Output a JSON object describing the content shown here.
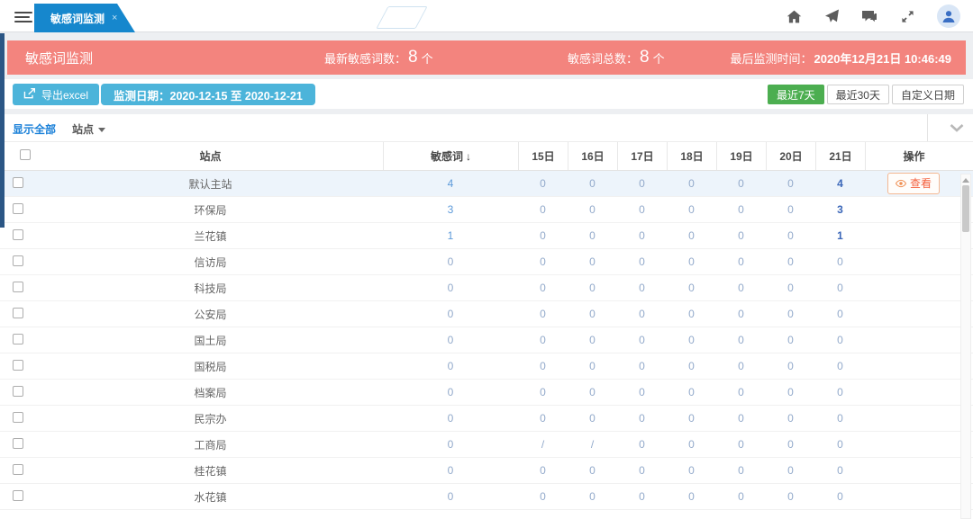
{
  "topbar": {
    "tab": {
      "label": "敏感词监测",
      "close_icon": "×"
    }
  },
  "header": {
    "title": "敏感词监测",
    "latest": {
      "label": "最新敏感词数：",
      "value": "8",
      "unit": "个"
    },
    "total": {
      "label": "敏感词总数：",
      "value": "8",
      "unit": "个"
    },
    "last_check": {
      "label": "最后监测时间：",
      "value": "2020年12月21日 10:46:49"
    }
  },
  "toolbar": {
    "export_label": "导出excel",
    "date_range_label": "监测日期：2020-12-15 至 2020-12-21",
    "range_buttons": [
      {
        "label": "最近7天",
        "active": true
      },
      {
        "label": "最近30天",
        "active": false
      },
      {
        "label": "自定义日期",
        "active": false
      }
    ]
  },
  "filter": {
    "show_all_label": "显示全部",
    "site_dropdown_label": "站点"
  },
  "table": {
    "headers": {
      "site": "站点",
      "keyword": "敏感词",
      "sort_icon": "↓",
      "days": [
        "15日",
        "16日",
        "17日",
        "18日",
        "19日",
        "20日",
        "21日"
      ],
      "action": "操作"
    },
    "rows": [
      {
        "site": "默认主站",
        "keyword": "4",
        "days": [
          "0",
          "0",
          "0",
          "0",
          "0",
          "0",
          "4"
        ],
        "action": "查看",
        "highlight": true
      },
      {
        "site": "环保局",
        "keyword": "3",
        "days": [
          "0",
          "0",
          "0",
          "0",
          "0",
          "0",
          "3"
        ]
      },
      {
        "site": "兰花镇",
        "keyword": "1",
        "days": [
          "0",
          "0",
          "0",
          "0",
          "0",
          "0",
          "1"
        ]
      },
      {
        "site": "信访局",
        "keyword": "0",
        "days": [
          "0",
          "0",
          "0",
          "0",
          "0",
          "0",
          "0"
        ]
      },
      {
        "site": "科技局",
        "keyword": "0",
        "days": [
          "0",
          "0",
          "0",
          "0",
          "0",
          "0",
          "0"
        ]
      },
      {
        "site": "公安局",
        "keyword": "0",
        "days": [
          "0",
          "0",
          "0",
          "0",
          "0",
          "0",
          "0"
        ]
      },
      {
        "site": "国土局",
        "keyword": "0",
        "days": [
          "0",
          "0",
          "0",
          "0",
          "0",
          "0",
          "0"
        ]
      },
      {
        "site": "国税局",
        "keyword": "0",
        "days": [
          "0",
          "0",
          "0",
          "0",
          "0",
          "0",
          "0"
        ]
      },
      {
        "site": "档案局",
        "keyword": "0",
        "days": [
          "0",
          "0",
          "0",
          "0",
          "0",
          "0",
          "0"
        ]
      },
      {
        "site": "民宗办",
        "keyword": "0",
        "days": [
          "0",
          "0",
          "0",
          "0",
          "0",
          "0",
          "0"
        ]
      },
      {
        "site": "工商局",
        "keyword": "0",
        "days": [
          "/",
          "/",
          "0",
          "0",
          "0",
          "0",
          "0"
        ]
      },
      {
        "site": "桂花镇",
        "keyword": "0",
        "days": [
          "0",
          "0",
          "0",
          "0",
          "0",
          "0",
          "0"
        ]
      },
      {
        "site": "水花镇",
        "keyword": "0",
        "days": [
          "0",
          "0",
          "0",
          "0",
          "0",
          "0",
          "0"
        ]
      }
    ]
  },
  "colors": {
    "accent_pink": "#f3847e",
    "accent_blue": "#4cb4da",
    "tab_blue": "#1687cd",
    "active_green": "#4cae50",
    "link_blue": "#1a80d8",
    "view_orange": "#f4603e"
  }
}
